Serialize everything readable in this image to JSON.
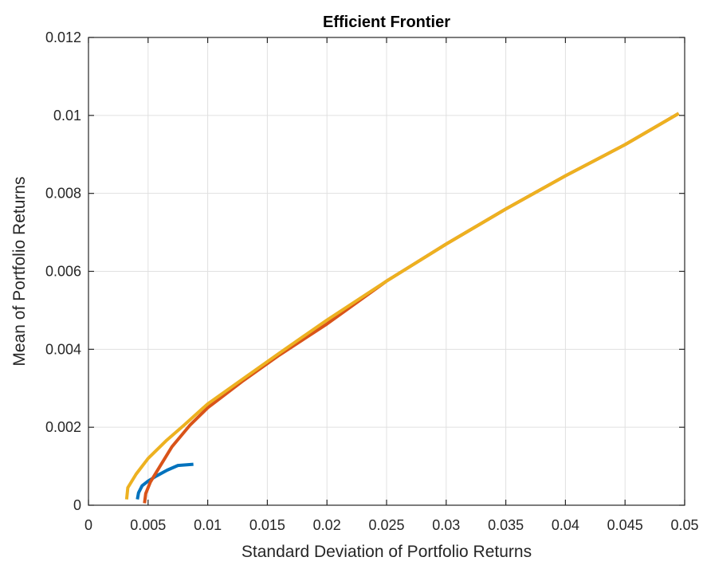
{
  "chart_data": {
    "type": "line",
    "title": "Efficient Frontier",
    "xlabel": "Standard Deviation of Portfolio Returns",
    "ylabel": "Mean of Portfolio Returns",
    "xlim": [
      0,
      0.05
    ],
    "ylim": [
      0,
      0.012
    ],
    "x_ticks": [
      "0",
      "0.005",
      "0.01",
      "0.015",
      "0.02",
      "0.025",
      "0.03",
      "0.035",
      "0.04",
      "0.045",
      "0.05"
    ],
    "y_ticks": [
      "0",
      "0.002",
      "0.004",
      "0.006",
      "0.008",
      "0.01",
      "0.012"
    ],
    "grid": true,
    "legend": null,
    "series": [
      {
        "color": "#0072bd",
        "points": [
          [
            0.0041,
            0.00015
          ],
          [
            0.0042,
            0.00032
          ],
          [
            0.0045,
            0.0005
          ],
          [
            0.005,
            0.00062
          ],
          [
            0.0057,
            0.00075
          ],
          [
            0.0066,
            0.0009
          ],
          [
            0.0075,
            0.00102
          ],
          [
            0.0088,
            0.00105
          ]
        ]
      },
      {
        "color": "#d95319",
        "points": [
          [
            0.0047,
            5e-05
          ],
          [
            0.0048,
            0.0003
          ],
          [
            0.0052,
            0.0006
          ],
          [
            0.006,
            0.001
          ],
          [
            0.007,
            0.0015
          ],
          [
            0.0085,
            0.00205
          ],
          [
            0.01,
            0.0025
          ],
          [
            0.013,
            0.0032
          ],
          [
            0.016,
            0.00385
          ],
          [
            0.02,
            0.00465
          ],
          [
            0.025,
            0.00575
          ],
          [
            0.03,
            0.0067
          ],
          [
            0.035,
            0.0076
          ],
          [
            0.04,
            0.00845
          ],
          [
            0.045,
            0.00925
          ],
          [
            0.0495,
            0.01005
          ]
        ]
      },
      {
        "color": "#edb120",
        "points": [
          [
            0.0032,
            0.00015
          ],
          [
            0.0033,
            0.00045
          ],
          [
            0.004,
            0.0008
          ],
          [
            0.005,
            0.0012
          ],
          [
            0.0065,
            0.00165
          ],
          [
            0.008,
            0.00205
          ],
          [
            0.01,
            0.0026
          ],
          [
            0.013,
            0.00325
          ],
          [
            0.016,
            0.0039
          ],
          [
            0.02,
            0.00475
          ],
          [
            0.025,
            0.00575
          ],
          [
            0.03,
            0.0067
          ],
          [
            0.035,
            0.0076
          ],
          [
            0.04,
            0.00845
          ],
          [
            0.045,
            0.00925
          ],
          [
            0.0495,
            0.01005
          ]
        ]
      }
    ]
  }
}
